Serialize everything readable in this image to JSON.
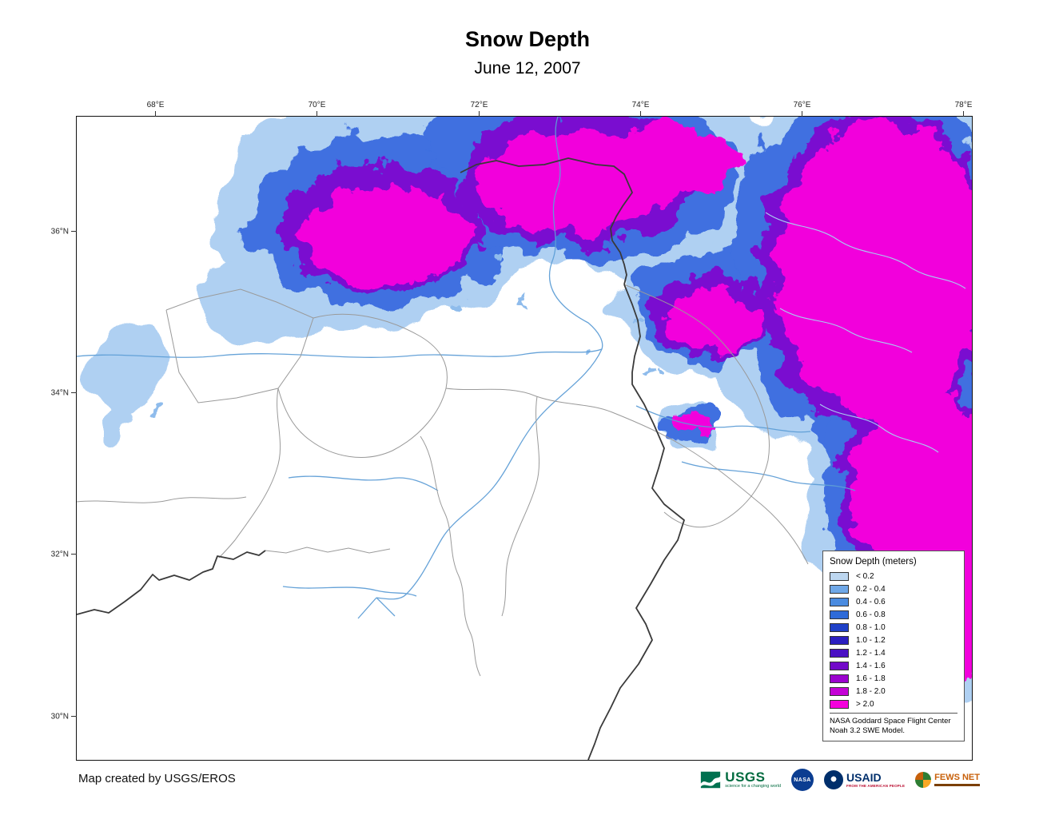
{
  "title": "Snow Depth",
  "subtitle": "June 12, 2007",
  "axes": {
    "longitude_ticks": [
      "68°E",
      "70°E",
      "72°E",
      "74°E",
      "76°E",
      "78°E"
    ],
    "latitude_ticks": [
      "36°N",
      "34°N",
      "32°N",
      "30°N"
    ]
  },
  "legend": {
    "title": "Snow Depth (meters)",
    "classes": [
      {
        "label": "< 0.2",
        "color": "#BDD7F0"
      },
      {
        "label": "0.2 - 0.4",
        "color": "#6FA8E8"
      },
      {
        "label": "0.4 - 0.6",
        "color": "#4A8BE0"
      },
      {
        "label": "0.6 - 0.8",
        "color": "#2F6BD8"
      },
      {
        "label": "0.8 - 1.0",
        "color": "#1F41C8"
      },
      {
        "label": "1.0 - 1.2",
        "color": "#2B1FC0"
      },
      {
        "label": "1.2 - 1.4",
        "color": "#4A10C4"
      },
      {
        "label": "1.4 - 1.6",
        "color": "#7209C9"
      },
      {
        "label": "1.6 - 1.8",
        "color": "#9B04CE"
      },
      {
        "label": "1.8 - 2.0",
        "color": "#C402D6"
      },
      {
        "label": "> 2.0",
        "color": "#F400DC"
      }
    ],
    "note_line1": "NASA Goddard Space Flight Center",
    "note_line2": "Noah 3.2 SWE Model."
  },
  "credit": "Map created by USGS/EROS",
  "logos": {
    "usgs": {
      "name": "USGS",
      "tagline": "science for a changing world"
    },
    "nasa": {
      "name": "NASA"
    },
    "usaid": {
      "name": "USAID",
      "tagline": "FROM THE AMERICAN PEOPLE"
    },
    "fews": {
      "name": "FEWS NET"
    }
  }
}
